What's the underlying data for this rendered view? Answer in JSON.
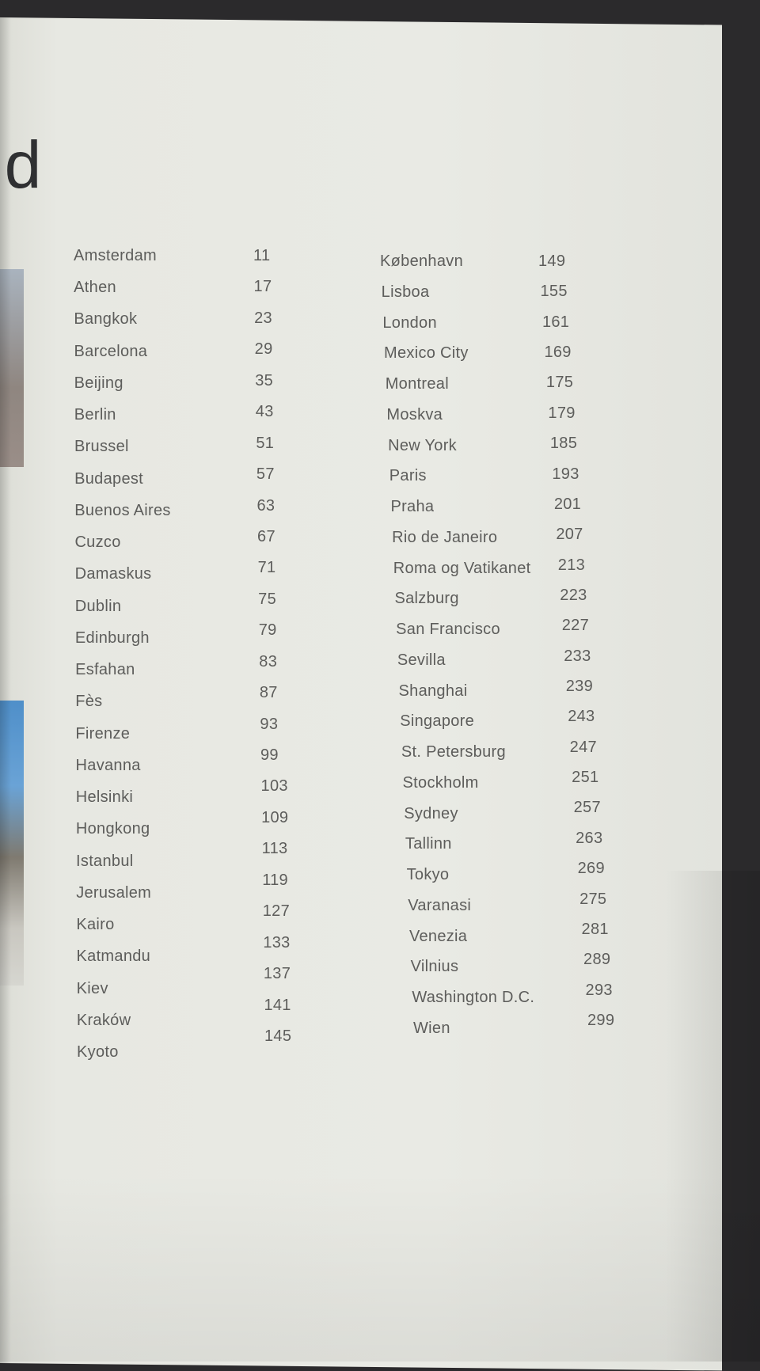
{
  "title_fragment": "ld",
  "toc_left": [
    {
      "city": "Amsterdam",
      "page": "11"
    },
    {
      "city": "Athen",
      "page": "17"
    },
    {
      "city": "Bangkok",
      "page": "23"
    },
    {
      "city": "Barcelona",
      "page": "29"
    },
    {
      "city": "Beijing",
      "page": "35"
    },
    {
      "city": "Berlin",
      "page": "43"
    },
    {
      "city": "Brussel",
      "page": "51"
    },
    {
      "city": "Budapest",
      "page": "57"
    },
    {
      "city": "Buenos Aires",
      "page": "63"
    },
    {
      "city": "Cuzco",
      "page": "67"
    },
    {
      "city": "Damaskus",
      "page": "71"
    },
    {
      "city": "Dublin",
      "page": "75"
    },
    {
      "city": "Edinburgh",
      "page": "79"
    },
    {
      "city": "Esfahan",
      "page": "83"
    },
    {
      "city": "Fès",
      "page": "87"
    },
    {
      "city": "Firenze",
      "page": "93"
    },
    {
      "city": "Havanna",
      "page": "99"
    },
    {
      "city": "Helsinki",
      "page": "103"
    },
    {
      "city": "Hongkong",
      "page": "109"
    },
    {
      "city": "Istanbul",
      "page": "113"
    },
    {
      "city": "Jerusalem",
      "page": "119"
    },
    {
      "city": "Kairo",
      "page": "127"
    },
    {
      "city": "Katmandu",
      "page": "133"
    },
    {
      "city": "Kiev",
      "page": "137"
    },
    {
      "city": "Kraków",
      "page": "141"
    },
    {
      "city": "Kyoto",
      "page": "145"
    }
  ],
  "toc_right": [
    {
      "city": "København",
      "page": "149"
    },
    {
      "city": "Lisboa",
      "page": "155"
    },
    {
      "city": "London",
      "page": "161"
    },
    {
      "city": "Mexico City",
      "page": "169"
    },
    {
      "city": "Montreal",
      "page": "175"
    },
    {
      "city": "Moskva",
      "page": "179"
    },
    {
      "city": "New York",
      "page": "185"
    },
    {
      "city": "Paris",
      "page": "193"
    },
    {
      "city": "Praha",
      "page": "201"
    },
    {
      "city": "Rio de Janeiro",
      "page": "207"
    },
    {
      "city": "Roma og Vatikanet",
      "page": "213"
    },
    {
      "city": "Salzburg",
      "page": "223"
    },
    {
      "city": "San Francisco",
      "page": "227"
    },
    {
      "city": "Sevilla",
      "page": "233"
    },
    {
      "city": "Shanghai",
      "page": "239"
    },
    {
      "city": "Singapore",
      "page": "243"
    },
    {
      "city": "St. Petersburg",
      "page": "247"
    },
    {
      "city": "Stockholm",
      "page": "251"
    },
    {
      "city": "Sydney",
      "page": "257"
    },
    {
      "city": "Tallinn",
      "page": "263"
    },
    {
      "city": "Tokyo",
      "page": "269"
    },
    {
      "city": "Varanasi",
      "page": "275"
    },
    {
      "city": "Venezia",
      "page": "281"
    },
    {
      "city": "Vilnius",
      "page": "289"
    },
    {
      "city": "Washington D.C.",
      "page": "293"
    },
    {
      "city": "Wien",
      "page": "299"
    }
  ]
}
